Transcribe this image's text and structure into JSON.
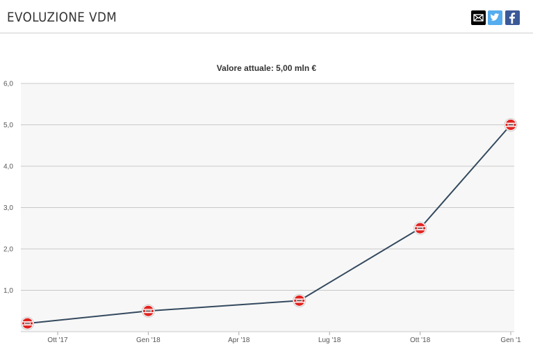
{
  "header": {
    "title": "EVOLUZIONE VDM",
    "share": [
      {
        "name": "mail-icon",
        "color": "#000000"
      },
      {
        "name": "twitter-icon",
        "color": "#55acee"
      },
      {
        "name": "facebook-icon",
        "color": "#3b5998"
      }
    ]
  },
  "chart_data": {
    "type": "line",
    "title": "Valore attuale: 5,00 mln €",
    "xlabel": "",
    "ylabel": "",
    "ylim": [
      0,
      6
    ],
    "yticks": [
      "6,0",
      "5,0",
      "4,0",
      "3,0",
      "2,0",
      "1,0"
    ],
    "xticks": [
      "Ott '17",
      "Gen '18",
      "Apr '18",
      "Lug '18",
      "Ott '18",
      "Gen '1"
    ],
    "grid": true,
    "legend": "none",
    "line_color": "#34495e",
    "plot_background": "#f7f7f7",
    "series": [
      {
        "points": [
          {
            "x": "2017-09",
            "y": 0.2
          },
          {
            "x": "2018-01",
            "y": 0.5
          },
          {
            "x": "2018-06",
            "y": 0.75
          },
          {
            "x": "2018-10",
            "y": 2.5
          },
          {
            "x": "2019-01",
            "y": 5.0
          }
        ]
      }
    ]
  }
}
